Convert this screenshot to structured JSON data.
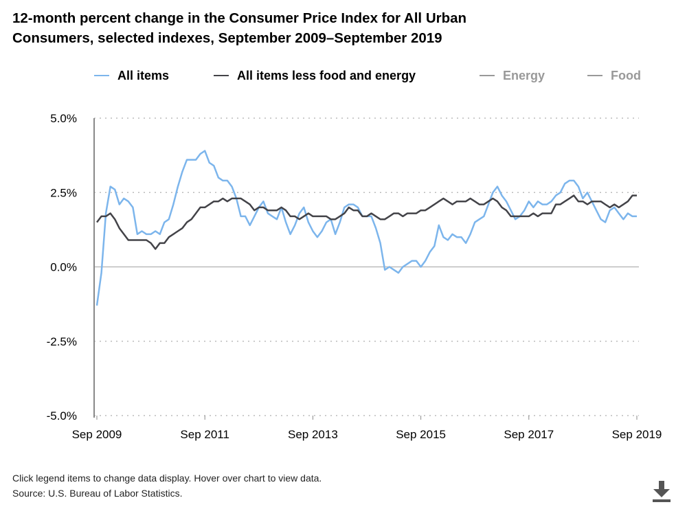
{
  "title_line1": "12-month percent change in the Consumer Price Index for All Urban",
  "title_line2": "Consumers, selected indexes, September 2009–September 2019",
  "footer": {
    "note": "Click legend items to change data display. Hover over chart to view data.",
    "source": "Source: U.S. Bureau of Labor Statistics."
  },
  "download_icon": "download-icon",
  "chart_data": {
    "type": "line",
    "title": "12-month percent change in the Consumer Price Index for All Urban Consumers, selected indexes, September 2009–September 2019",
    "xlabel": "",
    "ylabel": "",
    "x_start": "Sep 2009",
    "x_end": "Sep 2019",
    "x_ticks": [
      "Sep 2009",
      "Sep 2011",
      "Sep 2013",
      "Sep 2015",
      "Sep 2017",
      "Sep 2019"
    ],
    "y_ticks": [
      "5.0%",
      "2.5%",
      "0.0%",
      "-2.5%",
      "-5.0%"
    ],
    "ylim": [
      -5,
      5
    ],
    "grid": "horizontal dotted",
    "legend_position": "top",
    "series": [
      {
        "name": "All items",
        "color": "#7cb5ec",
        "visible": true,
        "values": [
          -1.3,
          -0.2,
          1.8,
          2.7,
          2.6,
          2.1,
          2.3,
          2.2,
          2.0,
          1.1,
          1.2,
          1.1,
          1.1,
          1.2,
          1.1,
          1.5,
          1.6,
          2.1,
          2.7,
          3.2,
          3.6,
          3.6,
          3.6,
          3.8,
          3.9,
          3.5,
          3.4,
          3.0,
          2.9,
          2.9,
          2.7,
          2.3,
          1.7,
          1.7,
          1.4,
          1.7,
          2.0,
          2.2,
          1.8,
          1.7,
          1.6,
          2.0,
          1.5,
          1.1,
          1.4,
          1.8,
          2.0,
          1.5,
          1.2,
          1.0,
          1.2,
          1.5,
          1.6,
          1.1,
          1.5,
          2.0,
          2.1,
          2.1,
          2.0,
          1.7,
          1.7,
          1.7,
          1.3,
          0.8,
          -0.1,
          0.0,
          -0.1,
          -0.2,
          0.0,
          0.1,
          0.2,
          0.2,
          0.0,
          0.2,
          0.5,
          0.7,
          1.4,
          1.0,
          0.9,
          1.1,
          1.0,
          1.0,
          0.8,
          1.1,
          1.5,
          1.6,
          1.7,
          2.1,
          2.5,
          2.7,
          2.4,
          2.2,
          1.9,
          1.6,
          1.7,
          1.9,
          2.2,
          2.0,
          2.2,
          2.1,
          2.1,
          2.2,
          2.4,
          2.5,
          2.8,
          2.9,
          2.9,
          2.7,
          2.3,
          2.5,
          2.2,
          1.9,
          1.6,
          1.5,
          1.9,
          2.0,
          1.8,
          1.6,
          1.8,
          1.7,
          1.7
        ]
      },
      {
        "name": "All items less food and energy",
        "color": "#434348",
        "visible": true,
        "values": [
          1.5,
          1.7,
          1.7,
          1.8,
          1.6,
          1.3,
          1.1,
          0.9,
          0.9,
          0.9,
          0.9,
          0.9,
          0.8,
          0.6,
          0.8,
          0.8,
          1.0,
          1.1,
          1.2,
          1.3,
          1.5,
          1.6,
          1.8,
          2.0,
          2.0,
          2.1,
          2.2,
          2.2,
          2.3,
          2.2,
          2.3,
          2.3,
          2.3,
          2.2,
          2.1,
          1.9,
          2.0,
          2.0,
          1.9,
          1.9,
          1.9,
          2.0,
          1.9,
          1.7,
          1.7,
          1.6,
          1.7,
          1.8,
          1.7,
          1.7,
          1.7,
          1.7,
          1.6,
          1.6,
          1.7,
          1.8,
          2.0,
          1.9,
          1.9,
          1.7,
          1.7,
          1.8,
          1.7,
          1.6,
          1.6,
          1.7,
          1.8,
          1.8,
          1.7,
          1.8,
          1.8,
          1.8,
          1.9,
          1.9,
          2.0,
          2.1,
          2.2,
          2.3,
          2.2,
          2.1,
          2.2,
          2.2,
          2.2,
          2.3,
          2.2,
          2.1,
          2.1,
          2.2,
          2.3,
          2.2,
          2.0,
          1.9,
          1.7,
          1.7,
          1.7,
          1.7,
          1.7,
          1.8,
          1.7,
          1.8,
          1.8,
          1.8,
          2.1,
          2.1,
          2.2,
          2.3,
          2.4,
          2.2,
          2.2,
          2.1,
          2.2,
          2.2,
          2.2,
          2.1,
          2.0,
          2.1,
          2.0,
          2.1,
          2.2,
          2.4,
          2.4
        ]
      },
      {
        "name": "Energy",
        "color": "#999999",
        "visible": false,
        "values": []
      },
      {
        "name": "Food",
        "color": "#999999",
        "visible": false,
        "values": []
      }
    ]
  }
}
